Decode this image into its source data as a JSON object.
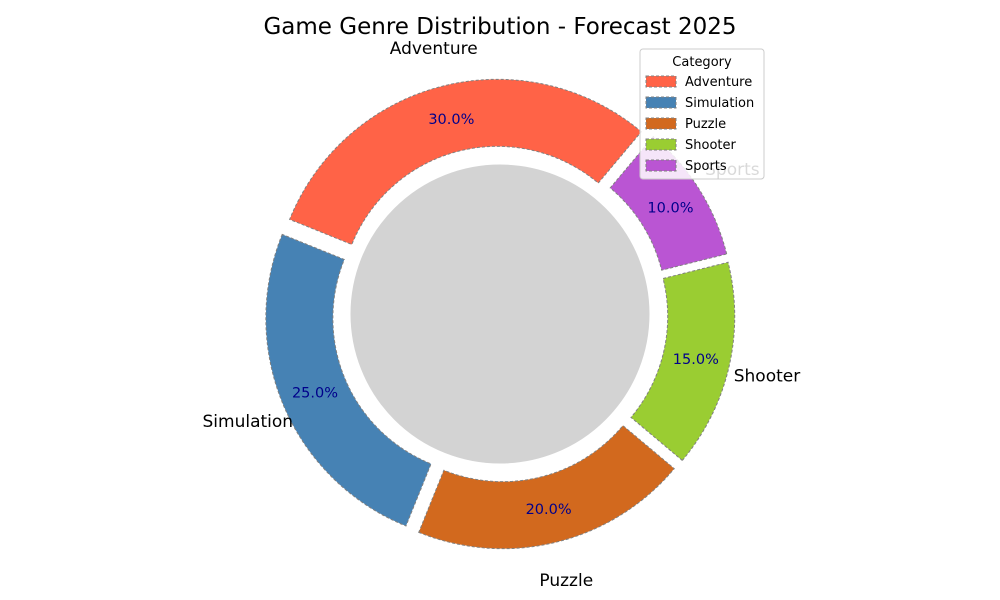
{
  "chart_data": {
    "type": "pie",
    "title": "Game Genre Distribution - Forecast 2025",
    "categories": [
      "Adventure",
      "Simulation",
      "Puzzle",
      "Shooter",
      "Sports"
    ],
    "values": [
      30.0,
      25.0,
      20.0,
      15.0,
      10.0
    ],
    "value_labels": [
      "30.0%",
      "25.0%",
      "20.0%",
      "15.0%",
      "10.0%"
    ],
    "colors": [
      "#ff6347",
      "#4682b4",
      "#d2691e",
      "#9acd32",
      "#ba55d3"
    ],
    "center_color": "#d3d3d3",
    "donut": true,
    "exploded": true,
    "edge_style": "dashed",
    "legend": {
      "title": "Category",
      "placement": "top-right",
      "entries": [
        "Adventure",
        "Simulation",
        "Puzzle",
        "Shooter",
        "Sports"
      ]
    }
  }
}
